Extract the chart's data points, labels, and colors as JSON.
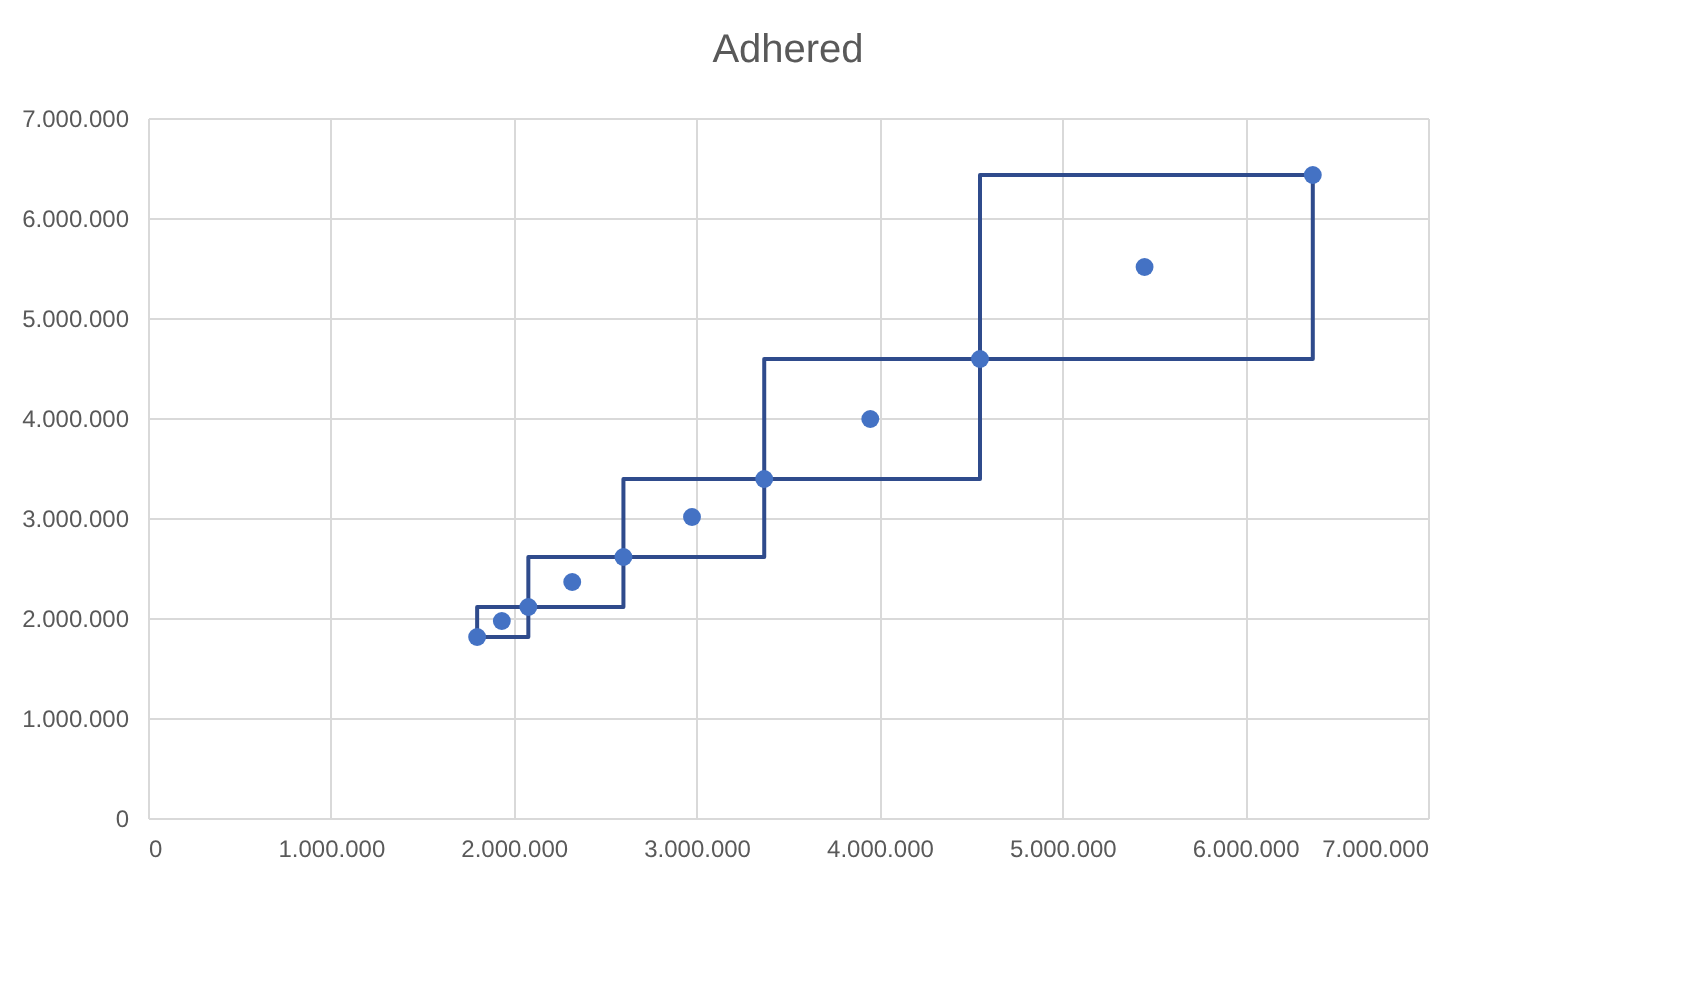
{
  "chart_data": {
    "type": "scatter",
    "title": "Adhered",
    "xlim": [
      0,
      7000000
    ],
    "ylim": [
      0,
      7000000
    ],
    "xticks": [
      0,
      {
        "value": 1000000,
        "label": "1.000.000"
      },
      {
        "value": 2000000,
        "label": "2.000.000"
      },
      {
        "value": 3000000,
        "label": "3.000.000"
      },
      {
        "value": 4000000,
        "label": "4.000.000"
      },
      {
        "value": 5000000,
        "label": "5.000.000"
      },
      {
        "value": 6000000,
        "label": "6.000.000"
      },
      {
        "value": 7000000,
        "label": "7.000.000"
      }
    ],
    "yticks": [
      0,
      {
        "value": 1000000,
        "label": "1.000.000"
      },
      {
        "value": 2000000,
        "label": "2.000.000"
      },
      {
        "value": 3000000,
        "label": "3.000.000"
      },
      {
        "value": 4000000,
        "label": "4.000.000"
      },
      {
        "value": 5000000,
        "label": "5.000.000"
      },
      {
        "value": 6000000,
        "label": "6.000.000"
      },
      {
        "value": 7000000,
        "label": "7.000.000"
      }
    ],
    "grid": true,
    "series": [
      {
        "type": "line",
        "color": "#2f4b8c",
        "line_style": "solid",
        "marker": "none",
        "x": [
          1800000,
          1800000,
          2080000,
          2080000,
          2600000,
          2600000,
          3370000,
          3370000,
          4550000,
          4550000,
          6370000
        ],
        "values": [
          1810000,
          2110000,
          2110000,
          2610000,
          2610000,
          3390000,
          3390000,
          4590000,
          4590000,
          6430000,
          6430000
        ]
      },
      {
        "type": "line",
        "color": "#2f4b8c",
        "line_style": "solid",
        "marker": "none",
        "x": [
          1800000,
          2080000,
          2080000,
          2600000,
          2600000,
          3370000,
          3370000,
          4550000,
          4550000,
          6370000,
          6370000
        ],
        "values": [
          1810000,
          1810000,
          2110000,
          2110000,
          2610000,
          2610000,
          3390000,
          3390000,
          4590000,
          4590000,
          6430000
        ]
      },
      {
        "color": "#4472c4",
        "marker": "circle",
        "x": [
          1800000,
          1935000,
          2080000,
          2320000,
          2600000,
          2975000,
          3370000,
          3950000,
          4550000,
          5450000,
          6370000
        ],
        "values": [
          1810000,
          1970000,
          2110000,
          2360000,
          2610000,
          3010000,
          3390000,
          3990000,
          4590000,
          5510000,
          6430000
        ]
      }
    ]
  }
}
